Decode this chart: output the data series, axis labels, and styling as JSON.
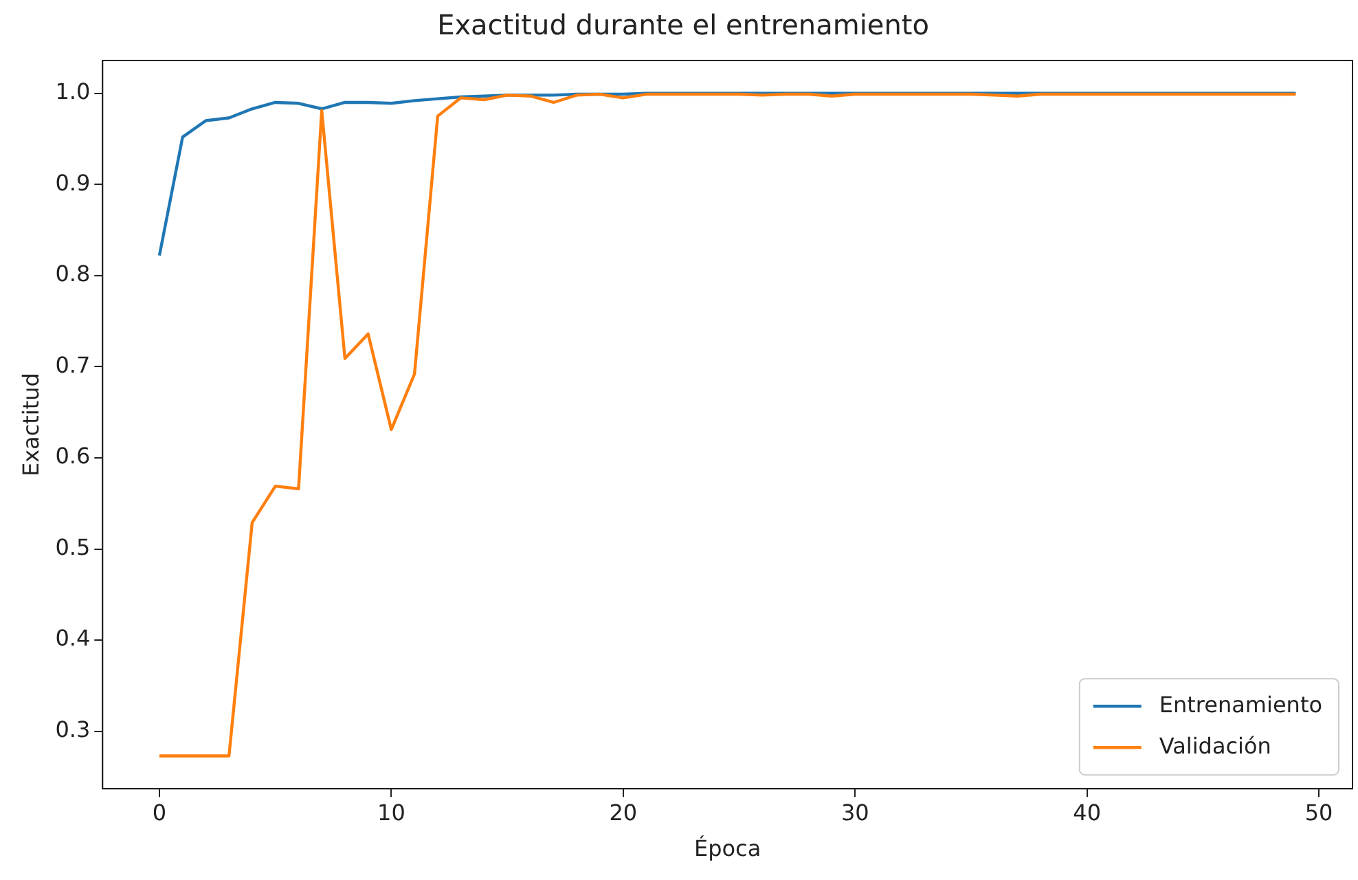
{
  "chart_data": {
    "type": "line",
    "title": "Exactitud durante el entrenamiento",
    "xlabel": "Época",
    "ylabel": "Exactitud",
    "x": [
      0,
      1,
      2,
      3,
      4,
      5,
      6,
      7,
      8,
      9,
      10,
      11,
      12,
      13,
      14,
      15,
      16,
      17,
      18,
      19,
      20,
      21,
      22,
      23,
      24,
      25,
      26,
      27,
      28,
      29,
      30,
      31,
      32,
      33,
      34,
      35,
      36,
      37,
      38,
      39,
      40,
      41,
      42,
      43,
      44,
      45,
      46,
      47,
      48,
      49
    ],
    "series": [
      {
        "name": "Entrenamiento",
        "color": "#1f77b4",
        "values": [
          0.822,
          0.952,
          0.97,
          0.973,
          0.983,
          0.99,
          0.989,
          0.983,
          0.99,
          0.99,
          0.989,
          0.992,
          0.994,
          0.996,
          0.997,
          0.998,
          0.998,
          0.998,
          0.999,
          0.999,
          0.999,
          1.0,
          1.0,
          1.0,
          1.0,
          1.0,
          1.0,
          1.0,
          1.0,
          1.0,
          1.0,
          1.0,
          1.0,
          1.0,
          1.0,
          1.0,
          1.0,
          1.0,
          1.0,
          1.0,
          1.0,
          1.0,
          1.0,
          1.0,
          1.0,
          1.0,
          1.0,
          1.0,
          1.0,
          1.0
        ]
      },
      {
        "name": "Validación",
        "color": "#ff7f0e",
        "values": [
          0.273,
          0.273,
          0.273,
          0.273,
          0.529,
          0.569,
          0.566,
          0.981,
          0.709,
          0.736,
          0.631,
          0.692,
          0.975,
          0.995,
          0.993,
          0.998,
          0.997,
          0.99,
          0.998,
          0.999,
          0.995,
          0.999,
          0.999,
          0.999,
          0.999,
          0.999,
          0.998,
          0.999,
          0.999,
          0.997,
          0.999,
          0.999,
          0.999,
          0.999,
          0.999,
          0.999,
          0.998,
          0.997,
          0.999,
          0.999,
          0.999,
          0.999,
          0.999,
          0.999,
          0.999,
          0.999,
          0.999,
          0.999,
          0.999,
          0.999
        ]
      }
    ],
    "xlim": [
      -2.45,
      51.45
    ],
    "xticks": [
      0,
      10,
      20,
      30,
      40,
      50
    ],
    "ylim": [
      0.237,
      1.036
    ],
    "yticks": [
      {
        "value": 0.3,
        "label": "0.3"
      },
      {
        "value": 0.4,
        "label": "0.4"
      },
      {
        "value": 0.5,
        "label": "0.5"
      },
      {
        "value": 0.6,
        "label": "0.6"
      },
      {
        "value": 0.7,
        "label": "0.7"
      },
      {
        "value": 0.8,
        "label": "0.8"
      },
      {
        "value": 0.9,
        "label": "0.9"
      },
      {
        "value": 1.0,
        "label": "1.0"
      }
    ],
    "grid": false,
    "legend": "bottom right",
    "marker": "none",
    "line_style": "solid"
  }
}
